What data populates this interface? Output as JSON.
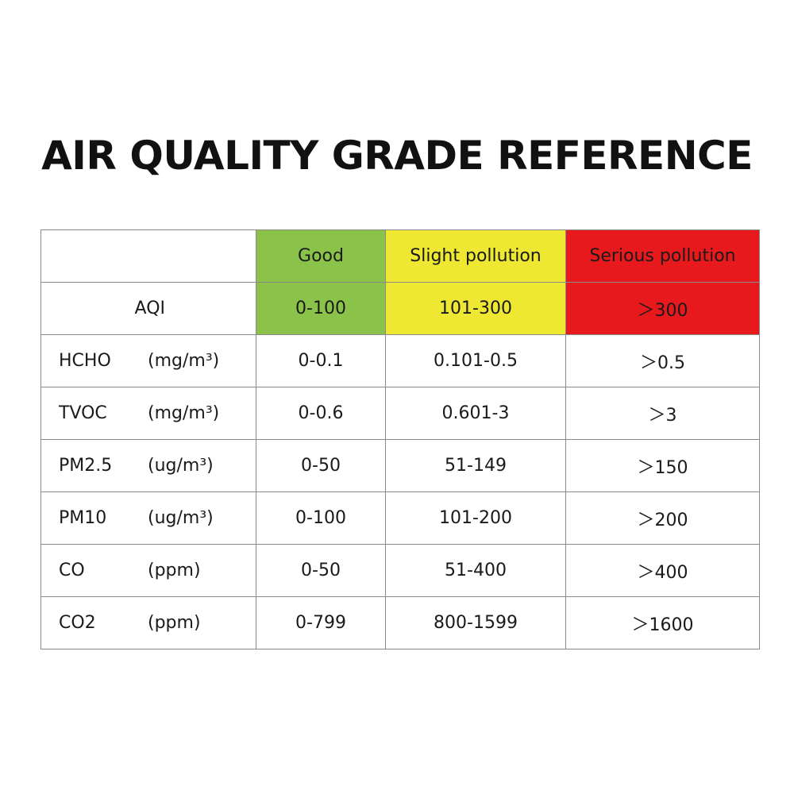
{
  "title": "AIR QUALITY GRADE REFERENCE",
  "colors": {
    "good": "#8bc34a",
    "slight": "#eee833",
    "serious": "#e8191c",
    "border": "#8a8a8a"
  },
  "header": {
    "empty": "",
    "good": "Good",
    "slight": "Slight pollution",
    "serious": "Serious pollution"
  },
  "aqi": {
    "label": "AQI",
    "good": "0-100",
    "slight": "101-300",
    "serious": "＞300"
  },
  "rows": [
    {
      "name": "HCHO",
      "unit": "(mg/m³)",
      "good": "0-0.1",
      "slight": "0.101-0.5",
      "serious": "＞0.5"
    },
    {
      "name": "TVOC",
      "unit": "(mg/m³)",
      "good": "0-0.6",
      "slight": "0.601-3",
      "serious": "＞3"
    },
    {
      "name": "PM2.5",
      "unit": "(ug/m³)",
      "good": "0-50",
      "slight": "51-149",
      "serious": "＞150"
    },
    {
      "name": "PM10",
      "unit": "(ug/m³)",
      "good": "0-100",
      "slight": "101-200",
      "serious": "＞200"
    },
    {
      "name": "CO",
      "unit": "(ppm)",
      "good": "0-50",
      "slight": "51-400",
      "serious": "＞400"
    },
    {
      "name": "CO2",
      "unit": "(ppm)",
      "good": "0-799",
      "slight": "800-1599",
      "serious": "＞1600"
    }
  ]
}
